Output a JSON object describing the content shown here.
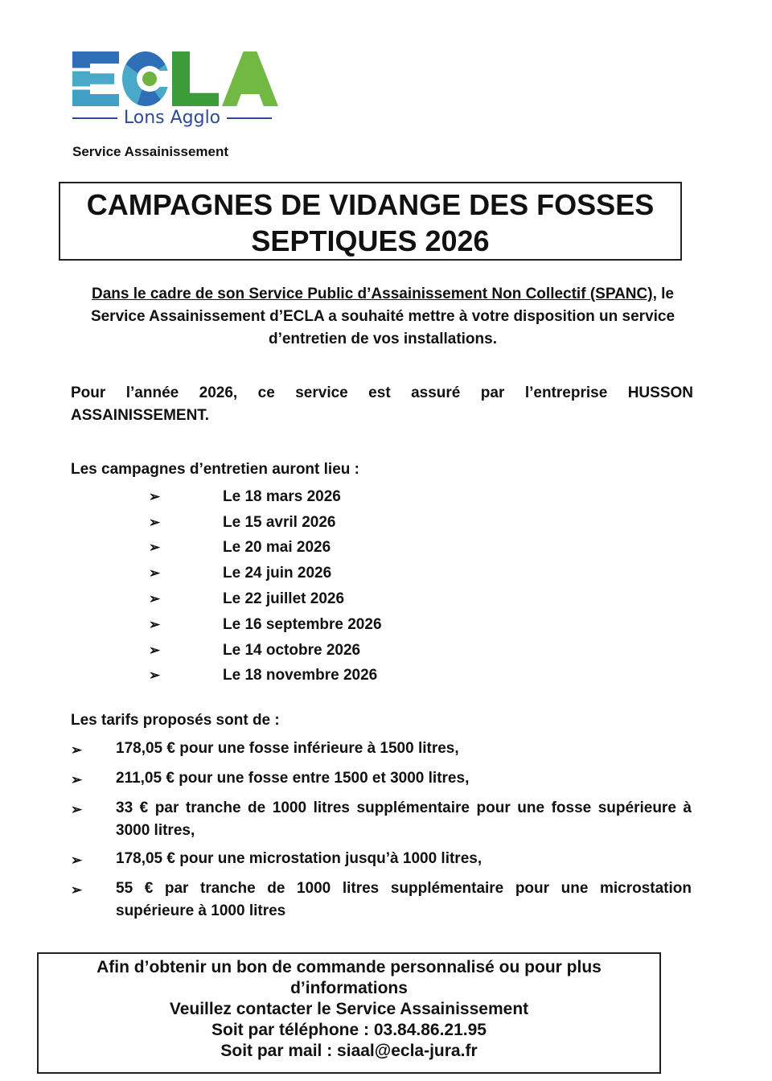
{
  "logo": {
    "letters": "ECLA",
    "subtitle": "Lons Agglo",
    "colors": {
      "blue": "#2f6fb8",
      "teal": "#4aa8c8",
      "green": "#3e9b3a",
      "light_green": "#72b943"
    }
  },
  "service": "Service Assainissement",
  "title": {
    "line1": "CAMPAGNES DE VIDANGE DES FOSSES",
    "line2": "SEPTIQUES 2026"
  },
  "intro": {
    "underlined": "Dans le cadre de son Service Public d’Assainissement Non Collectif (SPANC)",
    "rest": ", le Service Assainissement d’ECLA a souhaité mettre à votre disposition un service d’entretien de vos installations."
  },
  "provider": {
    "line1": "Pour l’année 2026, ce service est assuré par l’entreprise HUSSON",
    "line2": "ASSAINISSEMENT."
  },
  "campaigns": {
    "title": "Les campagnes d’entretien auront lieu :",
    "bullet": "➢",
    "dates": [
      "Le 18 mars 2026",
      "Le 15 avril 2026",
      "Le 20 mai 2026",
      "Le 24 juin 2026",
      "Le 22 juillet 2026",
      "Le 16 septembre 2026",
      "Le 14 octobre 2026",
      "Le 18 novembre 2026"
    ]
  },
  "tarifs": {
    "title": "Les tarifs proposés sont de :",
    "items": [
      "178,05 € pour une fosse inférieure à 1500 litres,",
      "211,05 € pour une fosse entre 1500 et 3000 litres,",
      "33 € par tranche de 1000 litres supplémentaire pour une fosse supérieure à 3000 litres,",
      "178,05 € pour une microstation jusqu’à 1000 litres,",
      "55 € par tranche de 1000 litres supplémentaire pour une microstation supérieure à 1000 litres"
    ]
  },
  "contact": {
    "line1": "Afin d’obtenir un bon de commande personnalisé ou pour plus d’informations",
    "line2": "Veuillez contacter le Service Assainissement",
    "line3": "Soit par téléphone : 03.84.86.21.95",
    "line4": "Soit par mail : siaal@ecla-jura.fr"
  }
}
